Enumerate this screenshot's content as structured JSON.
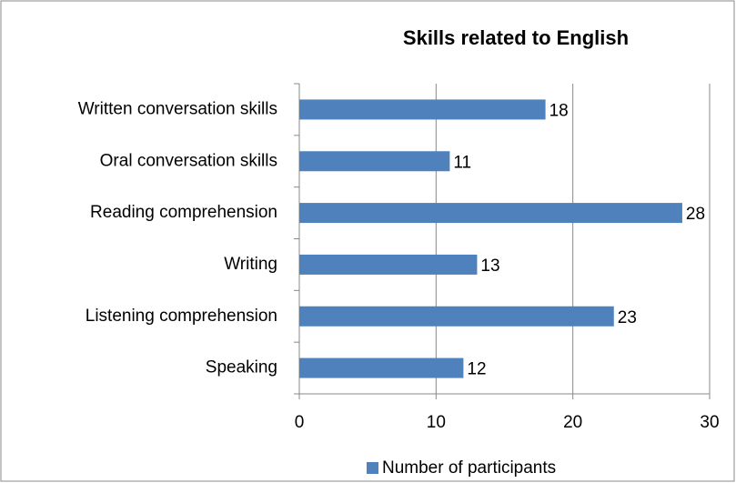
{
  "chart_data": {
    "type": "bar",
    "orientation": "horizontal",
    "title": "Skills related to English",
    "categories": [
      "Written conversation skills",
      "Oral conversation skills",
      "Reading comprehension",
      "Writing",
      "Listening comprehension",
      "Speaking"
    ],
    "series": [
      {
        "name": "Number of participants",
        "color": "#4f81bd",
        "values": [
          18,
          11,
          28,
          13,
          23,
          12
        ]
      }
    ],
    "xlim": [
      0,
      30
    ],
    "xticks": [
      0,
      10,
      20,
      30
    ],
    "grid": true,
    "legend": "bottom"
  }
}
